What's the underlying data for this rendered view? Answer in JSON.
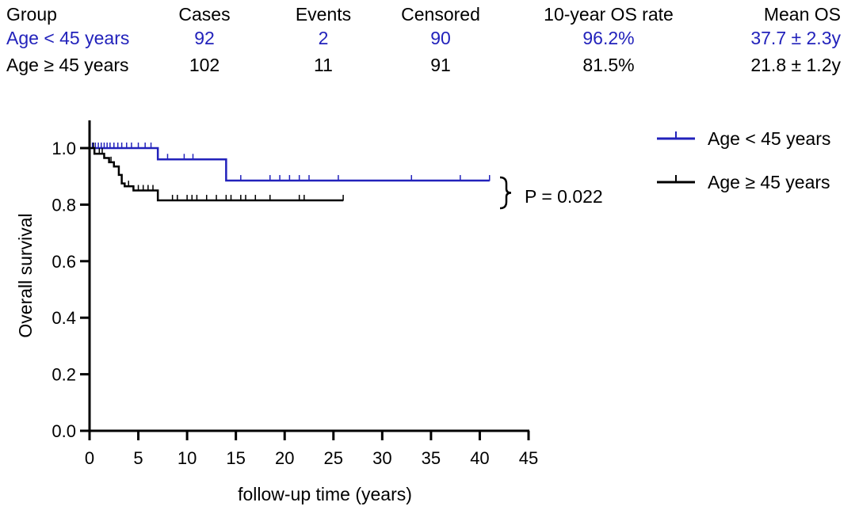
{
  "table": {
    "headers": [
      "Group",
      "Cases",
      "Events",
      "Censored",
      "10-year OS rate",
      "Mean OS"
    ],
    "rows": [
      {
        "group": "Age < 45 years",
        "cases": "92",
        "events": "2",
        "censored": "90",
        "os_rate": "96.2%",
        "mean_os": "37.7 ± 2.3y",
        "color": "#2222bb"
      },
      {
        "group": "Age ≥ 45 years",
        "cases": "102",
        "events": "11",
        "censored": "91",
        "os_rate": "81.5%",
        "mean_os": "21.8 ± 1.2y",
        "color": "#000000"
      }
    ]
  },
  "chart_data": {
    "type": "line",
    "subtype": "kaplan-meier",
    "xlabel": "follow-up time (years)",
    "ylabel": "Overall survival",
    "xlim": [
      0,
      45
    ],
    "ylim": [
      0,
      1.1
    ],
    "xticks": [
      0,
      5,
      10,
      15,
      20,
      25,
      30,
      35,
      40,
      45
    ],
    "yticks": [
      0.0,
      0.2,
      0.4,
      0.6,
      0.8,
      1.0
    ],
    "ytick_labels": [
      "0.0",
      "0.2",
      "0.4",
      "0.6",
      "0.8",
      "1.0"
    ],
    "legend_position": "top-right",
    "annotation": "P = 0.022",
    "series": [
      {
        "name": "Age < 45 years",
        "color": "#2222bb",
        "steps": [
          [
            0,
            1.0
          ],
          [
            7,
            0.96
          ],
          [
            14,
            0.885
          ],
          [
            41,
            0.885
          ]
        ],
        "censored": [
          0.3,
          0.6,
          0.9,
          1.2,
          1.5,
          1.8,
          2.1,
          2.5,
          2.9,
          3.3,
          3.8,
          4.3,
          5.0,
          5.7,
          6.3,
          8.0,
          9.7,
          10.6,
          15.5,
          18.5,
          19.5,
          20.5,
          21.5,
          22.5,
          25.5,
          33.0,
          38.0,
          41.0
        ]
      },
      {
        "name": "Age ≥ 45 years",
        "color": "#000000",
        "steps": [
          [
            0,
            1.0
          ],
          [
            0.5,
            0.98
          ],
          [
            1.5,
            0.965
          ],
          [
            2.0,
            0.95
          ],
          [
            2.5,
            0.935
          ],
          [
            3.0,
            0.905
          ],
          [
            3.3,
            0.875
          ],
          [
            3.6,
            0.865
          ],
          [
            4.5,
            0.85
          ],
          [
            7.0,
            0.815
          ],
          [
            26,
            0.815
          ]
        ],
        "censored": [
          0.4,
          1.0,
          1.3,
          2.2,
          4.0,
          5.0,
          5.5,
          6.0,
          6.5,
          8.5,
          9.0,
          10.0,
          10.5,
          11.0,
          12.0,
          13.0,
          14.0,
          14.5,
          15.5,
          16.0,
          17.0,
          18.5,
          21.5,
          22.0,
          26.0
        ]
      }
    ]
  }
}
